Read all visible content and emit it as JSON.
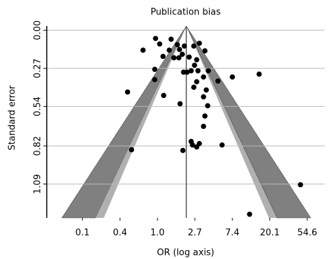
{
  "chart_data": {
    "type": "scatter",
    "title": "Publication bias",
    "xlabel": "OR (log axis)",
    "ylabel": "Standard error",
    "xscale": "log",
    "yinverted": true,
    "grid": true,
    "color": "#000000",
    "xlim": [
      0.052,
      86.5
    ],
    "ylim": [
      -0.03,
      1.33
    ],
    "xticks": [
      {
        "value": 0.135,
        "label": "0.1"
      },
      {
        "value": 0.368,
        "label": "0.4"
      },
      {
        "value": 1,
        "label": "1.0"
      },
      {
        "value": 2.718,
        "label": "2.7"
      },
      {
        "value": 7.389,
        "label": "7.4"
      },
      {
        "value": 20.09,
        "label": "20.1"
      },
      {
        "value": 54.6,
        "label": "54.6"
      }
    ],
    "yticks": [
      {
        "value": 0,
        "label": "0.00"
      },
      0.27,
      0.54,
      0.82,
      1.09
    ],
    "x": [
      0.95,
      1.06,
      1.44,
      1.7,
      1.8,
      1.37,
      1.16,
      0.68,
      1.55,
      1.77,
      1.94,
      2.05,
      2.64,
      3.06,
      3.55,
      2.85,
      2.33,
      2.69,
      2.46,
      2.01,
      2.2,
      2.95,
      3.42,
      2.85,
      2.64,
      3.89,
      5.03,
      7.39,
      15.1,
      0.93,
      0.93,
      1.18,
      0.45,
      1.83,
      3.68,
      3.42,
      3.82,
      3.55,
      3.42,
      3.06,
      2.55,
      2.85,
      2.46,
      1.97,
      5.61,
      0.5,
      45.5,
      11.7
    ],
    "values": [
      0.058,
      0.097,
      0.063,
      0.102,
      0.136,
      0.141,
      0.185,
      0.141,
      0.195,
      0.195,
      0.17,
      0.112,
      0.112,
      0.092,
      0.146,
      0.209,
      0.19,
      0.248,
      0.287,
      0.297,
      0.297,
      0.287,
      0.331,
      0.365,
      0.404,
      0.287,
      0.36,
      0.331,
      0.311,
      0.277,
      0.35,
      0.462,
      0.438,
      0.521,
      0.423,
      0.472,
      0.535,
      0.608,
      0.681,
      0.803,
      0.813,
      0.827,
      0.788,
      0.852,
      0.813,
      0.847,
      1.095,
      1.304
    ]
  }
}
